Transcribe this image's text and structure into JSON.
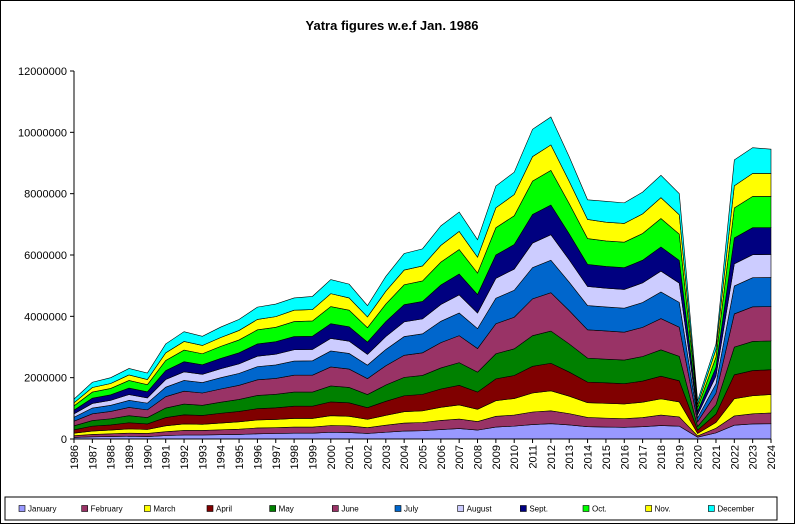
{
  "chart_data": {
    "type": "area",
    "stacked": true,
    "title": "Yatra figures w.e.f Jan. 1986",
    "xlabel": "",
    "ylabel": "",
    "x": [
      "1986",
      "1987",
      "1988",
      "1989",
      "1990",
      "1991",
      "1992",
      "1993",
      "1994",
      "1995",
      "1996",
      "1997",
      "1998",
      "1999",
      "2000",
      "2001",
      "2002",
      "2003",
      "2004",
      "2005",
      "2006",
      "2007",
      "2008",
      "2009",
      "2010",
      "2011",
      "2012",
      "2013",
      "2014",
      "2015",
      "2016",
      "2017",
      "2018",
      "2019",
      "2020",
      "2021",
      "2022",
      "2023",
      "2024"
    ],
    "ylim": [
      0,
      12000000
    ],
    "yticks": [
      0,
      2000000,
      4000000,
      6000000,
      8000000,
      10000000,
      12000000
    ],
    "ytick_labels": [
      "0",
      "2000000",
      "4000000",
      "6000000",
      "8000000",
      "10000000",
      "12000000"
    ],
    "grid": false,
    "legend_position": "bottom",
    "totals": [
      1300000,
      1850000,
      2000000,
      2300000,
      2150000,
      3100000,
      3500000,
      3350000,
      3650000,
      3900000,
      4300000,
      4400000,
      4600000,
      4650000,
      5200000,
      5050000,
      4350000,
      5300000,
      6050000,
      6200000,
      6950000,
      7400000,
      6500000,
      8250000,
      8700000,
      10100000,
      10500000,
      9200000,
      7800000,
      7750000,
      7700000,
      8050000,
      8600000,
      8000000,
      1250000,
      3100000,
      9100000,
      9500000,
      9450000
    ],
    "series": [
      {
        "name": "January",
        "color": "#9999FF",
        "values": [
          50000,
          70000,
          80000,
          90000,
          80000,
          110000,
          130000,
          130000,
          140000,
          150000,
          170000,
          180000,
          190000,
          190000,
          220000,
          210000,
          180000,
          220000,
          260000,
          270000,
          310000,
          340000,
          290000,
          390000,
          420000,
          470000,
          500000,
          460000,
          400000,
          390000,
          380000,
          400000,
          440000,
          420000,
          60000,
          200000,
          450000,
          490000,
          500000
        ]
      },
      {
        "name": "February",
        "color": "#993366",
        "values": [
          60000,
          80000,
          90000,
          100000,
          100000,
          130000,
          150000,
          150000,
          160000,
          170000,
          190000,
          190000,
          200000,
          200000,
          220000,
          220000,
          190000,
          230000,
          260000,
          270000,
          300000,
          310000,
          280000,
          350000,
          360000,
          410000,
          420000,
          370000,
          300000,
          290000,
          280000,
          300000,
          340000,
          300000,
          40000,
          150000,
          300000,
          330000,
          350000
        ]
      },
      {
        "name": "March",
        "color": "#FFFF00",
        "values": [
          80000,
          110000,
          120000,
          140000,
          130000,
          190000,
          210000,
          200000,
          220000,
          240000,
          260000,
          270000,
          280000,
          280000,
          320000,
          310000,
          270000,
          320000,
          370000,
          380000,
          430000,
          460000,
          400000,
          510000,
          540000,
          620000,
          650000,
          570000,
          480000,
          480000,
          480000,
          500000,
          530000,
          490000,
          80000,
          190000,
          560000,
          590000,
          600000
        ]
      },
      {
        "name": "April",
        "color": "#800000",
        "values": [
          110000,
          160000,
          170000,
          200000,
          180000,
          270000,
          300000,
          290000,
          320000,
          340000,
          370000,
          380000,
          400000,
          400000,
          450000,
          440000,
          380000,
          460000,
          520000,
          540000,
          600000,
          640000,
          560000,
          710000,
          750000,
          870000,
          900000,
          790000,
          670000,
          670000,
          660000,
          690000,
          740000,
          690000,
          110000,
          270000,
          780000,
          820000,
          810000
        ]
      },
      {
        "name": "May",
        "color": "#008000",
        "values": [
          130000,
          180000,
          200000,
          230000,
          210000,
          310000,
          350000,
          330000,
          360000,
          390000,
          430000,
          440000,
          460000,
          460000,
          520000,
          500000,
          430000,
          530000,
          600000,
          620000,
          690000,
          740000,
          650000,
          820000,
          870000,
          1000000,
          1050000,
          920000,
          780000,
          770000,
          770000,
          800000,
          860000,
          800000,
          120000,
          310000,
          900000,
          950000,
          940000
        ]
      },
      {
        "name": "June",
        "color": "#993366",
        "values": [
          150000,
          220000,
          240000,
          270000,
          250000,
          370000,
          420000,
          400000,
          430000,
          460000,
          510000,
          520000,
          550000,
          550000,
          620000,
          600000,
          520000,
          630000,
          720000,
          740000,
          830000,
          880000,
          770000,
          980000,
          1030000,
          1200000,
          1250000,
          1090000,
          920000,
          920000,
          910000,
          950000,
          1020000,
          950000,
          150000,
          370000,
          1080000,
          1130000,
          1120000
        ]
      },
      {
        "name": "July",
        "color": "#0066CC",
        "values": [
          130000,
          190000,
          200000,
          230000,
          220000,
          310000,
          350000,
          340000,
          370000,
          390000,
          430000,
          440000,
          460000,
          470000,
          520000,
          510000,
          440000,
          530000,
          610000,
          620000,
          700000,
          740000,
          650000,
          830000,
          880000,
          1020000,
          1060000,
          930000,
          790000,
          780000,
          780000,
          810000,
          870000,
          810000,
          130000,
          310000,
          910000,
          950000,
          950000
        ]
      },
      {
        "name": "August",
        "color": "#CCCCFF",
        "values": [
          110000,
          150000,
          160000,
          190000,
          170000,
          250000,
          280000,
          270000,
          290000,
          310000,
          340000,
          350000,
          370000,
          370000,
          410000,
          400000,
          350000,
          420000,
          480000,
          490000,
          550000,
          590000,
          510000,
          650000,
          690000,
          800000,
          830000,
          730000,
          620000,
          610000,
          610000,
          640000,
          680000,
          630000,
          100000,
          250000,
          720000,
          750000,
          750000
        ]
      },
      {
        "name": "Sept.",
        "color": "#000080",
        "values": [
          120000,
          170000,
          180000,
          210000,
          200000,
          290000,
          330000,
          310000,
          340000,
          360000,
          400000,
          410000,
          430000,
          430000,
          480000,
          470000,
          400000,
          490000,
          560000,
          570000,
          640000,
          680000,
          600000,
          760000,
          800000,
          930000,
          970000,
          850000,
          720000,
          710000,
          710000,
          740000,
          790000,
          740000,
          110000,
          290000,
          840000,
          880000,
          870000
        ]
      },
      {
        "name": "Oct.",
        "color": "#00FF00",
        "values": [
          140000,
          200000,
          210000,
          250000,
          230000,
          330000,
          380000,
          360000,
          390000,
          420000,
          460000,
          470000,
          490000,
          500000,
          560000,
          540000,
          470000,
          570000,
          650000,
          670000,
          750000,
          800000,
          700000,
          890000,
          940000,
          1090000,
          1130000,
          990000,
          840000,
          830000,
          830000,
          870000,
          930000,
          860000,
          130000,
          330000,
          980000,
          1020000,
          1020000
        ]
      },
      {
        "name": "Nov.",
        "color": "#FFFF00",
        "values": [
          100000,
          150000,
          160000,
          180000,
          170000,
          250000,
          280000,
          270000,
          290000,
          310000,
          340000,
          350000,
          370000,
          370000,
          420000,
          400000,
          350000,
          420000,
          480000,
          490000,
          550000,
          590000,
          520000,
          650000,
          690000,
          800000,
          830000,
          730000,
          620000,
          610000,
          610000,
          640000,
          680000,
          630000,
          100000,
          250000,
          720000,
          750000,
          750000
        ]
      },
      {
        "name": "December",
        "color": "#00FFFF",
        "values": [
          120000,
          170000,
          190000,
          210000,
          210000,
          290000,
          320000,
          300000,
          340000,
          360000,
          400000,
          410000,
          400000,
          430000,
          460000,
          450000,
          370000,
          480000,
          540000,
          560000,
          640000,
          630000,
          570000,
          710000,
          730000,
          890000,
          910000,
          800000,
          640000,
          680000,
          670000,
          710000,
          730000,
          690000,
          120000,
          180000,
          840000,
          840000,
          790000
        ]
      }
    ]
  }
}
